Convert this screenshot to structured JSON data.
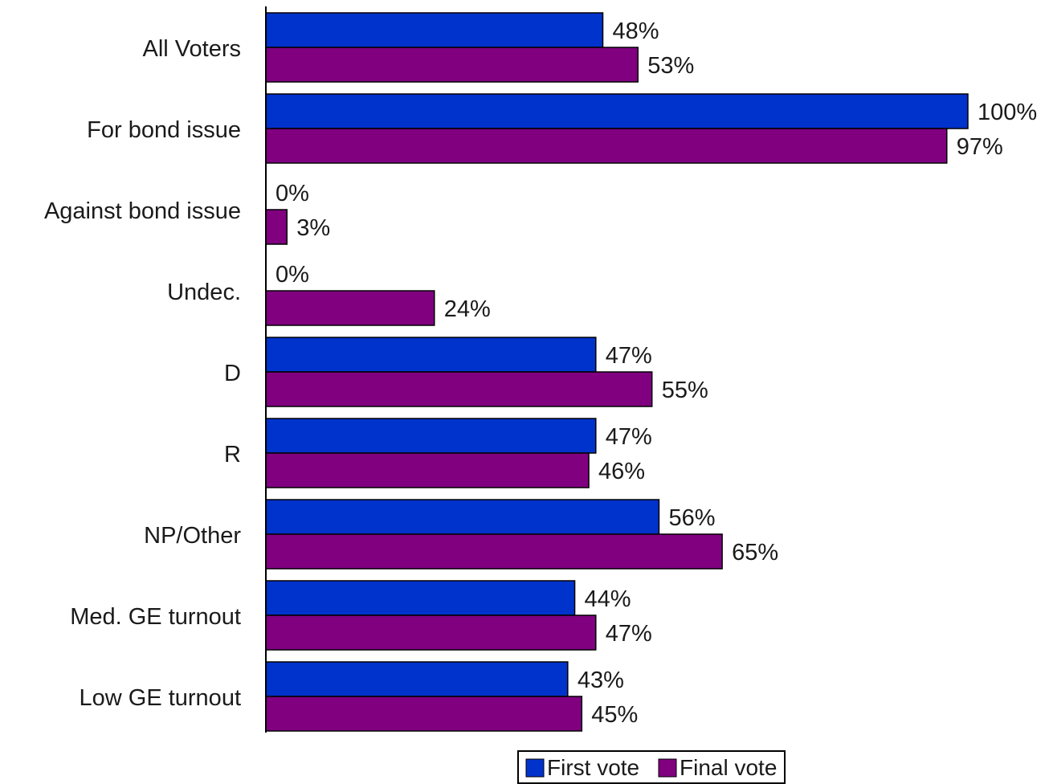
{
  "chart_data": {
    "type": "bar",
    "orientation": "horizontal",
    "categories": [
      "All Voters",
      "For bond issue",
      "Against bond issue",
      "Undec.",
      "D",
      "R",
      "NP/Other",
      "Med. GE turnout",
      "Low GE turnout"
    ],
    "series": [
      {
        "name": "First vote",
        "color": "#0033CC",
        "values": [
          48,
          100,
          0,
          0,
          47,
          47,
          56,
          44,
          43
        ],
        "labels": [
          "48%",
          "100%",
          "0%",
          "0%",
          "47%",
          "47%",
          "56%",
          "44%",
          "43%"
        ]
      },
      {
        "name": "Final vote",
        "color": "#800080",
        "values": [
          53,
          97,
          3,
          24,
          55,
          46,
          65,
          47,
          45
        ],
        "labels": [
          "53%",
          "97%",
          "3%",
          "24%",
          "55%",
          "46%",
          "65%",
          "47%",
          "45%"
        ]
      }
    ],
    "xlim": [
      0,
      100
    ],
    "grid": false,
    "legend_position": "bottom"
  }
}
